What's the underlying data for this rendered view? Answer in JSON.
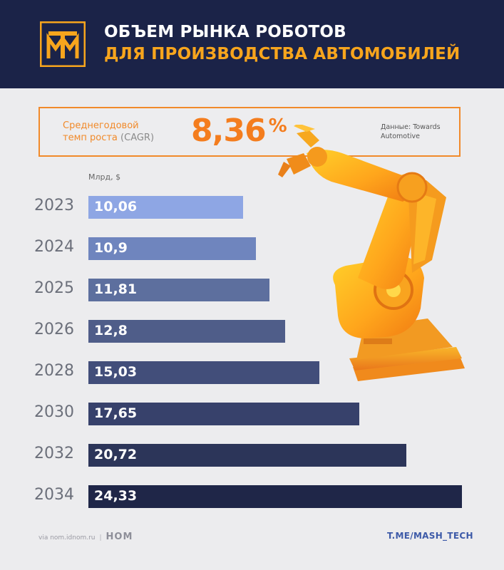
{
  "header": {
    "logo_icon": "tm-logo",
    "title_line1": "ОБЪЕМ РЫНКА РОБОТОВ",
    "title_line2": "ДЛЯ ПРОИЗВОДСТВА АВТОМОБИЛЕЙ",
    "accent_color": "#f7a51d",
    "background_color": "#1b2348"
  },
  "cagr": {
    "label_line1": "Среднегодовой",
    "label_line2_a": "темп роста",
    "label_line2_b": "(CAGR)",
    "value": "8,36",
    "percent_sign": "%",
    "source_line1": "Данные: Towards",
    "source_line2": "Automotive"
  },
  "chart_data": {
    "type": "bar",
    "orientation": "horizontal",
    "unit": "Млрд, $",
    "categories": [
      "2023",
      "2024",
      "2025",
      "2026",
      "2028",
      "2030",
      "2032",
      "2034"
    ],
    "values": [
      10.06,
      10.9,
      11.81,
      12.8,
      15.03,
      17.65,
      20.72,
      24.33
    ],
    "value_labels": [
      "10,06",
      "10,9",
      "11,81",
      "12,8",
      "15,03",
      "17,65",
      "20,72",
      "24,33"
    ],
    "colors": [
      "#8ea6e4",
      "#6f85be",
      "#5d6f9e",
      "#4f5d89",
      "#424e7a",
      "#37416b",
      "#2c3559",
      "#1f2648"
    ]
  },
  "illustration": {
    "icon": "industrial-robot-arm-icon"
  },
  "footer": {
    "credit": "via nom.idnom.ru",
    "brand": "НОМ",
    "channel": "T.ME/MASH_TECH"
  }
}
